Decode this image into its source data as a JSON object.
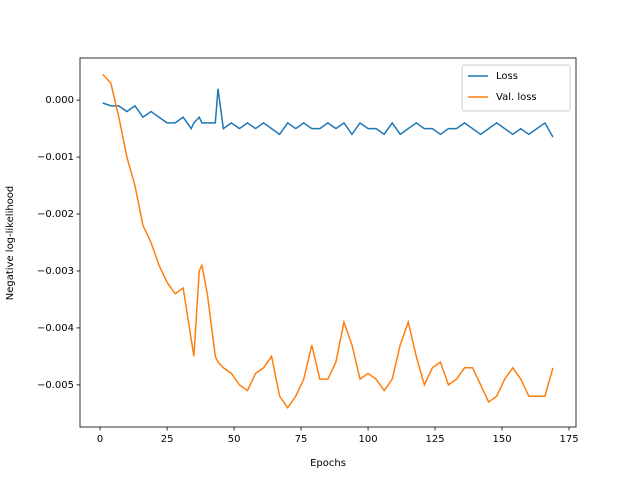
{
  "chart_data": {
    "type": "line",
    "xlabel": "Epochs",
    "ylabel": "Negative log-likelihood",
    "x": [
      1,
      4,
      7,
      10,
      13,
      16,
      19,
      22,
      25,
      28,
      31,
      34,
      35,
      37,
      38,
      40,
      43,
      44,
      46,
      49,
      52,
      55,
      58,
      61,
      64,
      67,
      70,
      73,
      76,
      79,
      82,
      85,
      88,
      91,
      94,
      97,
      100,
      103,
      106,
      109,
      112,
      115,
      118,
      121,
      124,
      127,
      130,
      133,
      136,
      139,
      142,
      145,
      148,
      151,
      154,
      157,
      160,
      163,
      166,
      169
    ],
    "series": [
      {
        "name": "Loss",
        "color": "#1f77b4",
        "values": [
          -5e-05,
          -0.0001,
          -0.0001,
          -0.0002,
          -0.0001,
          -0.0003,
          -0.0002,
          -0.0003,
          -0.0004,
          -0.0004,
          -0.0003,
          -0.0005,
          -0.0004,
          -0.0003,
          -0.0004,
          -0.0004,
          -0.0004,
          0.0002,
          -0.0005,
          -0.0004,
          -0.0005,
          -0.0004,
          -0.0005,
          -0.0004,
          -0.0005,
          -0.0006,
          -0.0004,
          -0.0005,
          -0.0004,
          -0.0005,
          -0.0005,
          -0.0004,
          -0.0005,
          -0.0004,
          -0.0006,
          -0.0004,
          -0.0005,
          -0.0005,
          -0.0006,
          -0.0004,
          -0.0006,
          -0.0005,
          -0.0004,
          -0.0005,
          -0.0005,
          -0.0006,
          -0.0005,
          -0.0005,
          -0.0004,
          -0.0005,
          -0.0006,
          -0.0005,
          -0.0004,
          -0.0005,
          -0.0006,
          -0.0005,
          -0.0006,
          -0.0005,
          -0.0004,
          -0.00065
        ]
      },
      {
        "name": "Val. loss",
        "color": "#ff7f0e",
        "values": [
          0.00045,
          0.0003,
          -0.0003,
          -0.001,
          -0.0015,
          -0.0022,
          -0.0025,
          -0.0029,
          -0.0032,
          -0.0034,
          -0.0033,
          -0.0042,
          -0.0045,
          -0.003,
          -0.0029,
          -0.0034,
          -0.0045,
          -0.0046,
          -0.0047,
          -0.0048,
          -0.005,
          -0.0051,
          -0.0048,
          -0.0047,
          -0.0045,
          -0.0052,
          -0.0054,
          -0.0052,
          -0.0049,
          -0.0043,
          -0.0049,
          -0.0049,
          -0.0046,
          -0.0039,
          -0.0043,
          -0.0049,
          -0.0048,
          -0.0049,
          -0.0051,
          -0.0049,
          -0.0043,
          -0.0039,
          -0.0045,
          -0.005,
          -0.0047,
          -0.0046,
          -0.005,
          -0.0049,
          -0.0047,
          -0.0047,
          -0.005,
          -0.0053,
          -0.0052,
          -0.0049,
          -0.0047,
          -0.0049,
          -0.0052,
          -0.0052,
          -0.0052,
          -0.0047
        ]
      }
    ],
    "xlim": [
      -7.5,
      177.6
    ],
    "xticks": [
      0,
      25,
      50,
      75,
      100,
      125,
      150,
      175
    ],
    "ylim": [
      -0.00574,
      0.00074
    ],
    "yticks": [
      {
        "value": 0,
        "label": "0.000"
      },
      {
        "value": -0.001,
        "label": "−0.001"
      },
      {
        "value": -0.002,
        "label": "−0.002"
      },
      {
        "value": -0.003,
        "label": "−0.003"
      },
      {
        "value": -0.004,
        "label": "−0.004"
      },
      {
        "value": -0.005,
        "label": "−0.005"
      }
    ],
    "legend": "upper right",
    "grid": false
  }
}
